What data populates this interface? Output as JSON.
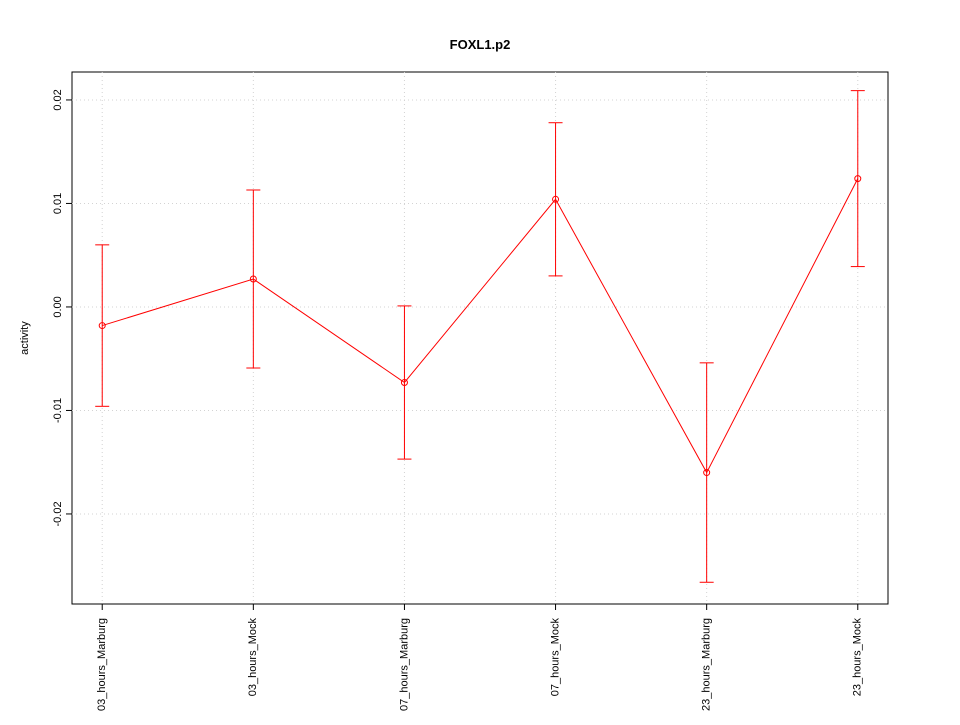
{
  "chart_data": {
    "type": "line",
    "title": "FOXL1.p2",
    "y_label": "activity",
    "categories": [
      "03_hours_Marburg",
      "03_hours_Mock",
      "07_hours_Marburg",
      "07_hours_Mock",
      "23_hours_Marburg",
      "23_hours_Mock"
    ],
    "values": [
      -0.0018,
      0.0027,
      -0.0073,
      0.0104,
      -0.016,
      0.0124
    ],
    "errors": [
      0.0078,
      0.0086,
      0.0074,
      0.0074,
      0.0106,
      0.0085
    ],
    "color": "#ff0000",
    "ylim": [
      -0.0287,
      0.0227
    ],
    "yticks": [
      -0.02,
      -0.01,
      {
        "value": 0,
        "label": "0.00"
      },
      0.01,
      0.02
    ],
    "grid": true
  }
}
